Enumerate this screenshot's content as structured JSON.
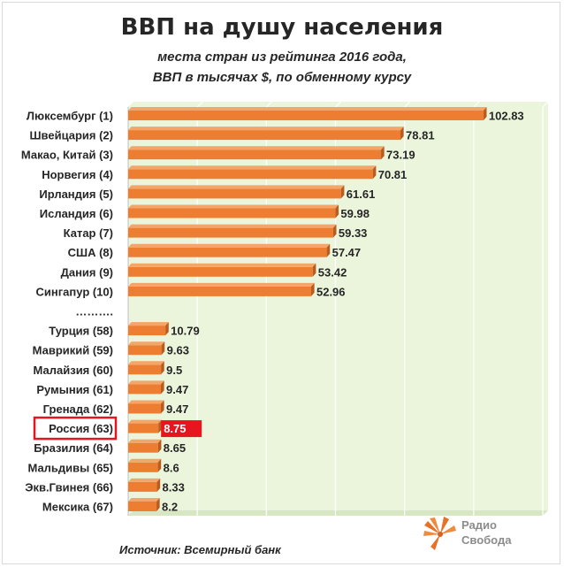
{
  "header": {
    "title": "ВВП на душу населения",
    "subtitle_line1": "места стран из рейтинга 2016 года,",
    "subtitle_line2": "ВВП в тысячах $, по обменному курсу"
  },
  "footer": {
    "source": "Источник: Всемирный банк",
    "logo_line1": "Радио",
    "logo_line2": "Свобода"
  },
  "colors": {
    "bar": "#ed7d31",
    "bar_top": "#f4a56a",
    "bar_side": "#b85c1f",
    "plot_background": "#ebf5dc",
    "gridline": "#ffffff",
    "highlight": "#e8141e"
  },
  "chart_data": {
    "type": "bar",
    "orientation": "horizontal",
    "title": "ВВП на душу населения",
    "categories": [
      "Люксембург (1)",
      "Швейцария (2)",
      "Макао, Китай (3)",
      "Норвегия (4)",
      "Ирландия (5)",
      "Исландия (6)",
      "Катар (7)",
      "США (8)",
      "Дания (9)",
      "Сингапур (10)",
      "……….",
      "Турция (58)",
      "Маврикий (59)",
      "Малайзия (60)",
      "Румыния (61)",
      "Гренада (62)",
      "Россия (63)",
      "Бразилия (64)",
      "Мальдивы (65)",
      "Экв.Гвинея (66)",
      "Мексика (67)"
    ],
    "values": [
      102.83,
      78.81,
      73.19,
      70.81,
      61.61,
      59.98,
      59.33,
      57.47,
      53.42,
      52.96,
      null,
      10.79,
      9.63,
      9.5,
      9.47,
      9.47,
      8.75,
      8.65,
      8.6,
      8.33,
      8.2
    ],
    "value_labels": [
      "102.83",
      "78.81",
      "73.19",
      "70.81",
      "61.61",
      "59.98",
      "59.33",
      "57.47",
      "53.42",
      "52.96",
      "",
      "10.79",
      "9.63",
      "9.5",
      "9.47",
      "9.47",
      "8.75",
      "8.65",
      "8.6",
      "8.33",
      "8.2"
    ],
    "highlighted_category": "Россия (63)",
    "xlim": [
      0,
      120
    ],
    "grid": true,
    "legend": "none"
  }
}
